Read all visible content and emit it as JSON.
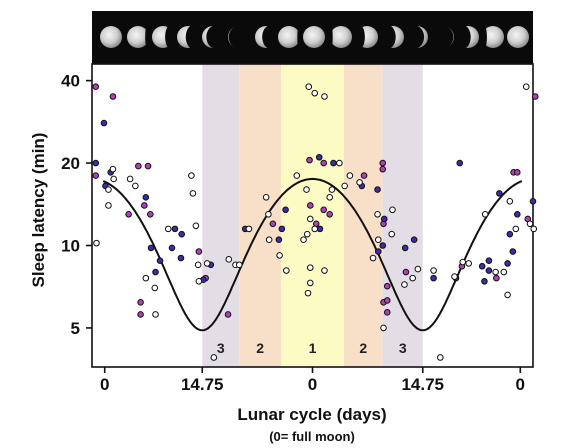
{
  "chart_data": {
    "type": "scatter",
    "xlabel": "Lunar cycle (days)",
    "xlabel_note": "(0= full moon)",
    "ylabel": "Sleep latency (min)",
    "x_ticks": [
      "0",
      "14.75",
      "0",
      "14.75",
      "0"
    ],
    "y_ticks": [
      5,
      10,
      20,
      40
    ],
    "y_scale": "log",
    "ylim": [
      3.6,
      46
    ],
    "xlim": [
      -29.5,
      29.5
    ],
    "bands": [
      {
        "label": "3",
        "from": -14.75,
        "to": -9.8,
        "color": "#e3dde6"
      },
      {
        "label": "2",
        "from": -9.8,
        "to": -4.2,
        "color": "#f7dfc8"
      },
      {
        "label": "1",
        "from": -4.2,
        "to": 4.2,
        "color": "#fdfbc4"
      },
      {
        "label": "2",
        "from": 4.2,
        "to": 9.4,
        "color": "#f7dfc8"
      },
      {
        "label": "3",
        "from": 9.4,
        "to": 14.75,
        "color": "#e3dde6"
      }
    ],
    "fit_curve": {
      "name": "",
      "mean": 11.2,
      "amplitude": 6.3,
      "peak_at": 0,
      "period": 29.5
    },
    "series": [
      {
        "marker": "purple",
        "color": "#b23fb8",
        "points": [
          [
            -29.0,
            38
          ],
          [
            -29.0,
            18
          ],
          [
            -26.7,
            35
          ],
          [
            -24.6,
            13
          ],
          [
            -23.3,
            19.5
          ],
          [
            -22.0,
            19.5
          ],
          [
            -22.5,
            14
          ],
          [
            -21.7,
            13
          ],
          [
            -23.0,
            6.2
          ],
          [
            -23.0,
            5.6
          ],
          [
            -15.2,
            9.5
          ],
          [
            -14.3,
            7.6
          ],
          [
            -11.3,
            5.6
          ],
          [
            -5.3,
            12
          ],
          [
            -0.4,
            20.5
          ],
          [
            -0.3,
            14
          ],
          [
            0.5,
            12
          ],
          [
            1.5,
            20
          ],
          [
            1.5,
            13.5
          ],
          [
            2.3,
            13
          ],
          [
            6.9,
            18
          ],
          [
            9.4,
            20
          ],
          [
            9.4,
            19
          ],
          [
            9.5,
            12
          ],
          [
            9.5,
            6.2
          ],
          [
            10.0,
            7.1
          ],
          [
            10.0,
            6.3
          ],
          [
            10.0,
            5.7
          ],
          [
            12.5,
            8.0
          ],
          [
            20.0,
            8.4
          ],
          [
            24.6,
            7.6
          ],
          [
            26.9,
            18.5
          ],
          [
            27.4,
            18.5
          ],
          [
            28.8,
            12.5
          ],
          [
            29.8,
            35
          ]
        ]
      },
      {
        "marker": "blue",
        "color": "#3b2ca8",
        "points": [
          [
            -29.0,
            20
          ],
          [
            -27.9,
            28
          ],
          [
            -27.7,
            16.5
          ],
          [
            -27.0,
            18.5
          ],
          [
            -22.3,
            15
          ],
          [
            -21.6,
            9.8
          ],
          [
            -21.0,
            8.0
          ],
          [
            -20.4,
            8.8
          ],
          [
            -18.8,
            9.8
          ],
          [
            -18.4,
            11.5
          ],
          [
            -17.5,
            11
          ],
          [
            -17.6,
            9.0
          ],
          [
            -14.6,
            7.5
          ],
          [
            -13.6,
            8.5
          ],
          [
            -9.0,
            11.5
          ],
          [
            -4.5,
            10.5
          ],
          [
            -4.1,
            11.5
          ],
          [
            -3.6,
            13.5
          ],
          [
            0.9,
            21
          ],
          [
            2.8,
            20
          ],
          [
            1.0,
            11.5
          ],
          [
            6.6,
            16.5
          ],
          [
            8.7,
            16
          ],
          [
            8.8,
            9.5
          ],
          [
            9.4,
            10
          ],
          [
            9.6,
            12.5
          ],
          [
            12.4,
            9.8
          ],
          [
            13.6,
            10.5
          ],
          [
            16.2,
            7.6
          ],
          [
            19.2,
            7.6
          ],
          [
            19.7,
            20
          ],
          [
            23.0,
            7.4
          ],
          [
            23.6,
            8.1
          ],
          [
            26.4,
            11
          ],
          [
            26.8,
            9.5
          ],
          [
            27.4,
            13
          ],
          [
            26.1,
            8.6
          ],
          [
            25.0,
            15.5
          ],
          [
            23.6,
            8.8
          ],
          [
            22.7,
            8.4
          ],
          [
            29.5,
            14.5
          ]
        ]
      },
      {
        "marker": "white",
        "color": "#ffffff",
        "points": [
          [
            -28.9,
            10.2
          ],
          [
            -27.3,
            14
          ],
          [
            -27.3,
            16
          ],
          [
            -26.7,
            19
          ],
          [
            -26.6,
            17.5
          ],
          [
            -24.4,
            17.5
          ],
          [
            -23.7,
            16.5
          ],
          [
            -22.3,
            7.6
          ],
          [
            -21.1,
            7.0
          ],
          [
            -21.0,
            5.6
          ],
          [
            -19.3,
            11.5
          ],
          [
            -16.2,
            18
          ],
          [
            -16.0,
            15.5
          ],
          [
            -15.6,
            11.8
          ],
          [
            -15.3,
            8.5
          ],
          [
            -15.2,
            7.4
          ],
          [
            -14.1,
            8.6
          ],
          [
            -13.2,
            3.9
          ],
          [
            -11.2,
            8.9
          ],
          [
            -10.3,
            8.5
          ],
          [
            -9.8,
            8.5
          ],
          [
            -8.5,
            11.5
          ],
          [
            -6.2,
            15
          ],
          [
            -5.9,
            13
          ],
          [
            -5.8,
            10.5
          ],
          [
            -4.4,
            9.2
          ],
          [
            -3.5,
            8.1
          ],
          [
            -2.1,
            18
          ],
          [
            -1.2,
            10.5
          ],
          [
            -0.7,
            11
          ],
          [
            -0.3,
            12.5
          ],
          [
            -0.3,
            8.3
          ],
          [
            -0.3,
            7.3
          ],
          [
            -0.5,
            38
          ],
          [
            -0.6,
            6.7
          ],
          [
            -0.8,
            16
          ],
          [
            0.3,
            11.5
          ],
          [
            0.3,
            36
          ],
          [
            1.6,
            35
          ],
          [
            1.6,
            8.1
          ],
          [
            2.3,
            15
          ],
          [
            2.6,
            16
          ],
          [
            3.6,
            20
          ],
          [
            4.3,
            16.5
          ],
          [
            5.0,
            18
          ],
          [
            6.3,
            17
          ],
          [
            8.1,
            9.0
          ],
          [
            8.7,
            13
          ],
          [
            8.8,
            10.5
          ],
          [
            9.5,
            5.0
          ],
          [
            10.6,
            11
          ],
          [
            10.7,
            13.5
          ],
          [
            12.3,
            7.2
          ],
          [
            13.4,
            7.6
          ],
          [
            14.1,
            8.2
          ],
          [
            16.2,
            8.1
          ],
          [
            17.1,
            3.9
          ],
          [
            19.0,
            7.7
          ],
          [
            20.1,
            8.7
          ],
          [
            20.9,
            8.6
          ],
          [
            23.1,
            13
          ],
          [
            24.5,
            8.0
          ],
          [
            25.6,
            8.0
          ],
          [
            26.1,
            6.6
          ],
          [
            26.4,
            14.5
          ],
          [
            27.2,
            11.5
          ],
          [
            28.6,
            38
          ],
          [
            29.1,
            12
          ],
          [
            29.6,
            11.5
          ]
        ]
      }
    ]
  }
}
